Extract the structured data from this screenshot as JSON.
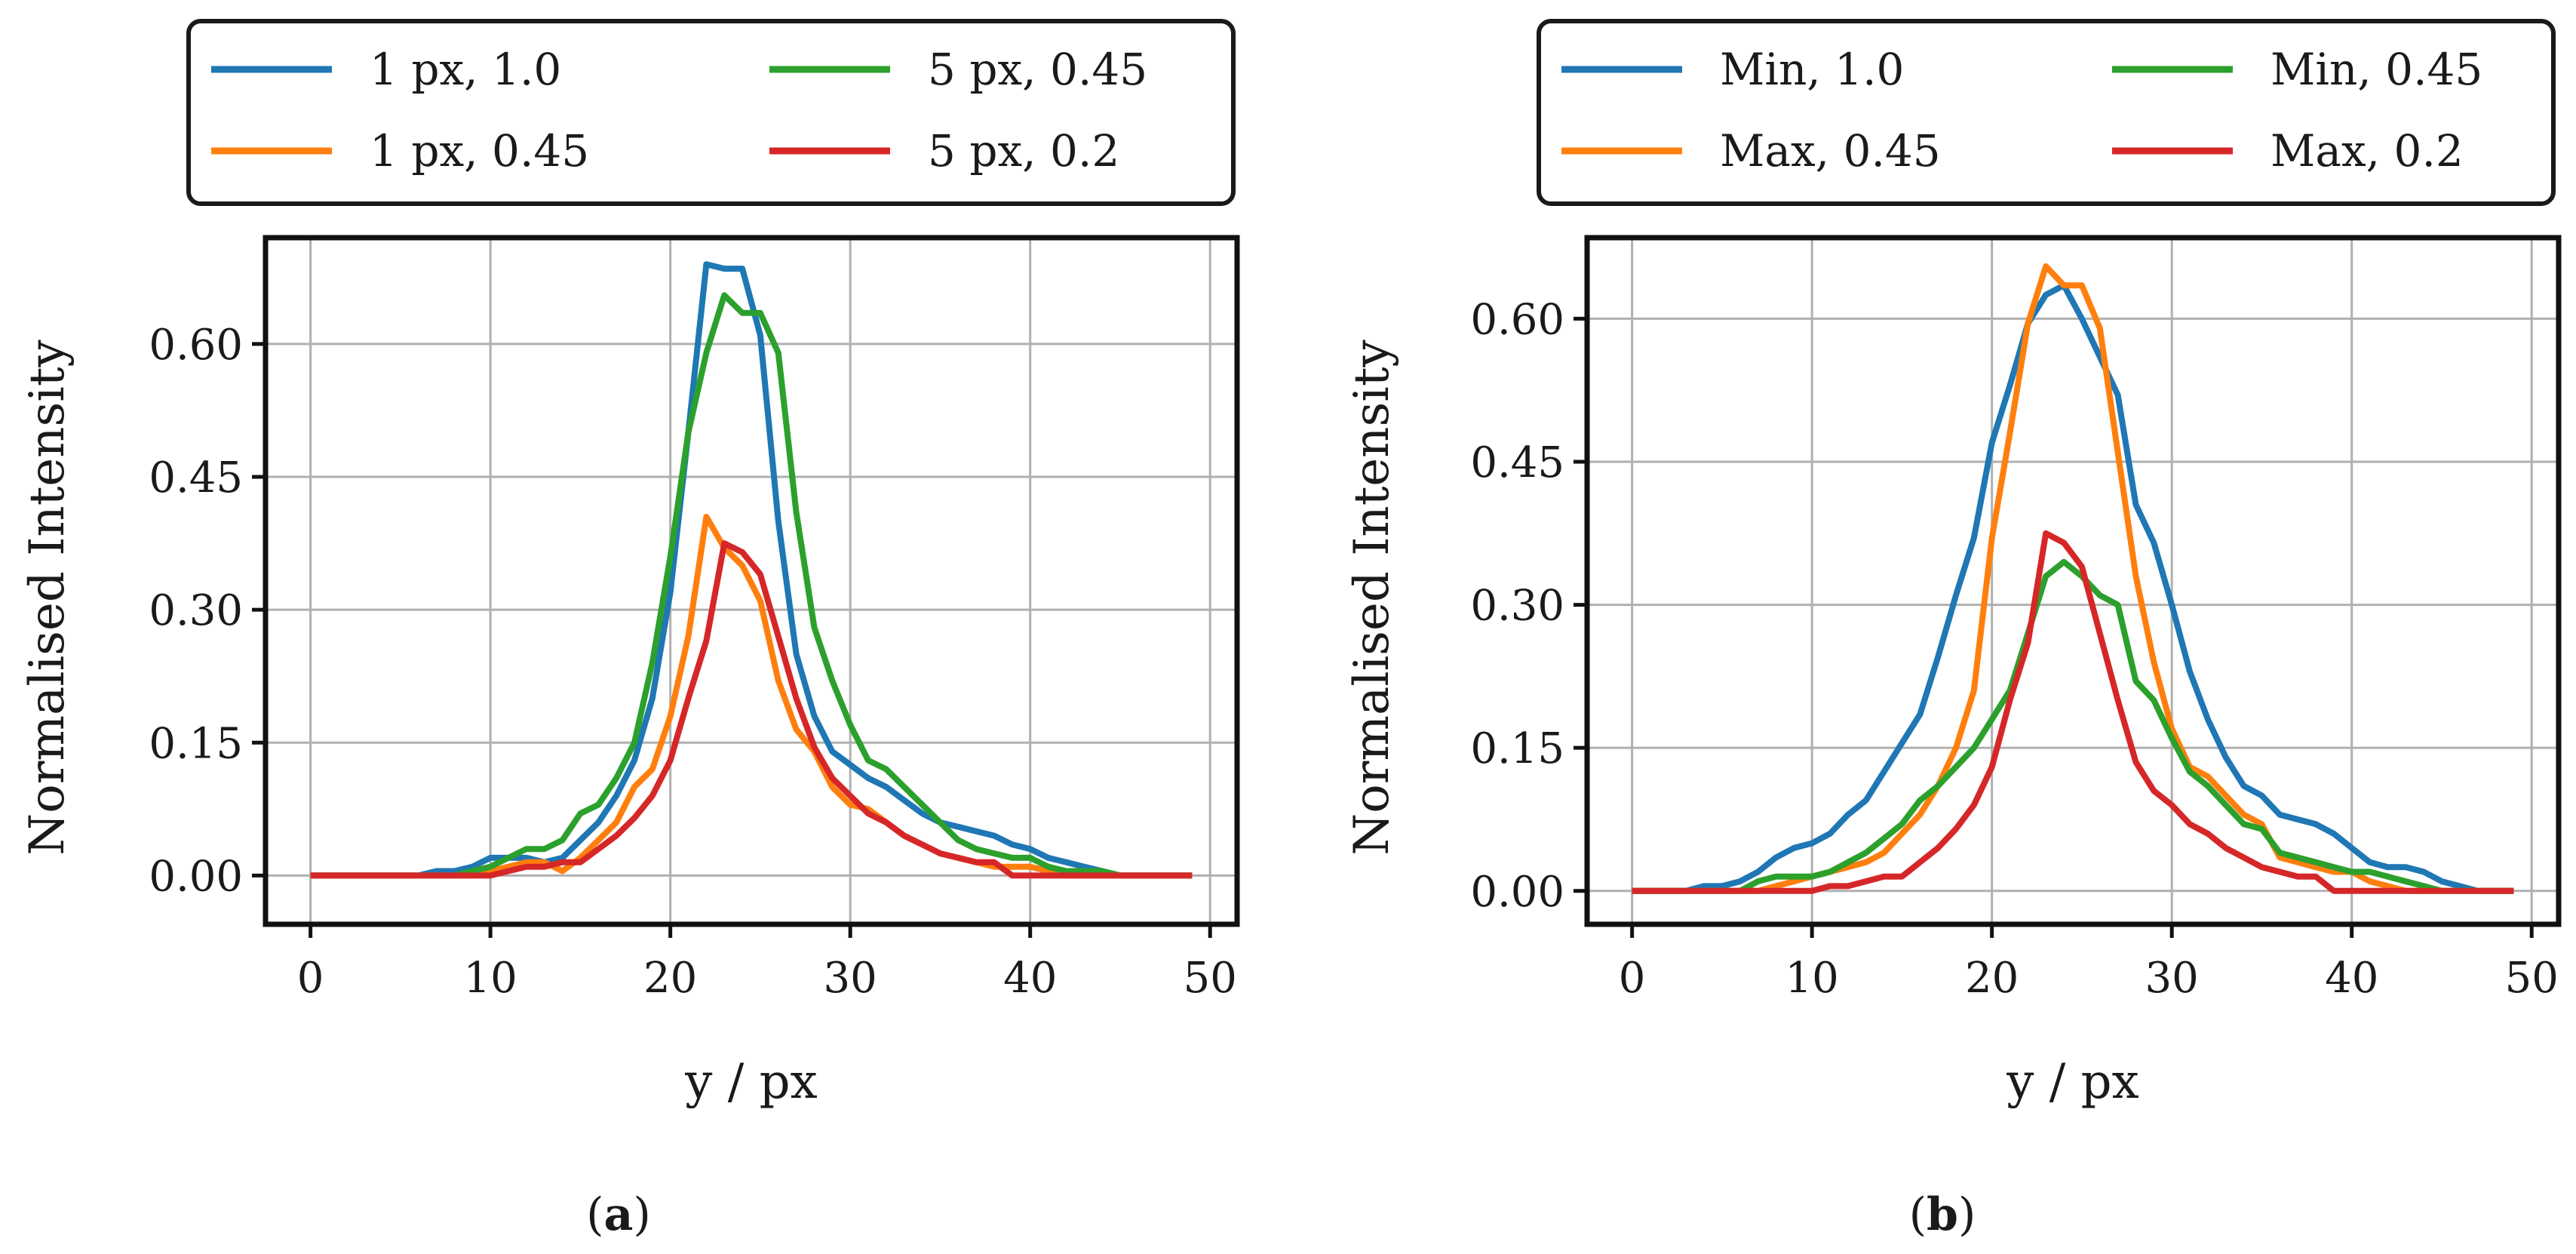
{
  "chart_data": [
    {
      "type": "line",
      "caption": "(a)",
      "caption_letter": "a",
      "xlabel": "y / px",
      "ylabel": "Normalised Intensity",
      "xlim": [
        -2.5,
        51.5
      ],
      "ylim": [
        -0.055,
        0.72
      ],
      "xticks": [
        0,
        10,
        20,
        30,
        40,
        50
      ],
      "xtick_labels": [
        "0",
        "10",
        "20",
        "30",
        "40",
        "50"
      ],
      "yticks": [
        0.0,
        0.15,
        0.3,
        0.45,
        0.6
      ],
      "ytick_labels": [
        "0.00",
        "0.15",
        "0.30",
        "0.45",
        "0.60"
      ],
      "grid": true,
      "legend_placement": "top, above plot, 2 columns",
      "x": [
        0,
        1,
        2,
        3,
        4,
        5,
        6,
        7,
        8,
        9,
        10,
        11,
        12,
        13,
        14,
        15,
        16,
        17,
        18,
        19,
        20,
        21,
        22,
        23,
        24,
        25,
        26,
        27,
        28,
        29,
        30,
        31,
        32,
        33,
        34,
        35,
        36,
        37,
        38,
        39,
        40,
        41,
        42,
        43,
        44,
        45,
        46,
        47,
        48,
        49
      ],
      "series": [
        {
          "name": "1 px, 1.0",
          "color": "#1f77b4",
          "values": [
            0,
            0,
            0,
            0,
            0,
            0,
            0,
            0.005,
            0.005,
            0.01,
            0.02,
            0.02,
            0.02,
            0.015,
            0.02,
            0.04,
            0.06,
            0.09,
            0.13,
            0.2,
            0.32,
            0.5,
            0.69,
            0.685,
            0.685,
            0.61,
            0.4,
            0.25,
            0.18,
            0.14,
            0.125,
            0.11,
            0.1,
            0.085,
            0.07,
            0.06,
            0.055,
            0.05,
            0.045,
            0.035,
            0.03,
            0.02,
            0.015,
            0.01,
            0.005,
            0,
            0,
            0,
            0,
            0
          ]
        },
        {
          "name": "1 px, 0.45",
          "color": "#ff7f0e",
          "values": [
            0,
            0,
            0,
            0,
            0,
            0,
            0,
            0,
            0,
            0,
            0.005,
            0.01,
            0.015,
            0.015,
            0.005,
            0.02,
            0.04,
            0.06,
            0.1,
            0.12,
            0.18,
            0.27,
            0.405,
            0.37,
            0.35,
            0.31,
            0.22,
            0.165,
            0.14,
            0.1,
            0.08,
            0.075,
            0.06,
            0.045,
            0.035,
            0.025,
            0.02,
            0.015,
            0.01,
            0.01,
            0.01,
            0.005,
            0,
            0,
            0,
            0,
            0,
            0,
            0,
            0
          ]
        },
        {
          "name": "5 px, 0.45",
          "color": "#2ca02c",
          "values": [
            0,
            0,
            0,
            0,
            0,
            0,
            0,
            0,
            0,
            0.005,
            0.01,
            0.02,
            0.03,
            0.03,
            0.04,
            0.07,
            0.08,
            0.11,
            0.15,
            0.24,
            0.36,
            0.5,
            0.59,
            0.655,
            0.635,
            0.635,
            0.59,
            0.41,
            0.28,
            0.22,
            0.17,
            0.13,
            0.12,
            0.1,
            0.08,
            0.06,
            0.04,
            0.03,
            0.025,
            0.02,
            0.02,
            0.01,
            0.005,
            0.005,
            0.005,
            0,
            0,
            0,
            0,
            0
          ]
        },
        {
          "name": "5 px, 0.2",
          "color": "#d62728",
          "values": [
            0,
            0,
            0,
            0,
            0,
            0,
            0,
            0,
            0,
            0,
            0,
            0.005,
            0.01,
            0.01,
            0.015,
            0.015,
            0.03,
            0.045,
            0.065,
            0.09,
            0.13,
            0.2,
            0.265,
            0.375,
            0.365,
            0.34,
            0.27,
            0.2,
            0.145,
            0.11,
            0.09,
            0.07,
            0.06,
            0.045,
            0.035,
            0.025,
            0.02,
            0.015,
            0.015,
            0,
            0,
            0,
            0,
            0,
            0,
            0,
            0,
            0,
            0,
            0
          ]
        }
      ]
    },
    {
      "type": "line",
      "caption": "(b)",
      "caption_letter": "b",
      "xlabel": "y / px",
      "ylabel": "Normalised Intensity",
      "xlim": [
        -2.5,
        51.5
      ],
      "ylim": [
        -0.035,
        0.685
      ],
      "xticks": [
        0,
        10,
        20,
        30,
        40,
        50
      ],
      "xtick_labels": [
        "0",
        "10",
        "20",
        "30",
        "40",
        "50"
      ],
      "yticks": [
        0.0,
        0.15,
        0.3,
        0.45,
        0.6
      ],
      "ytick_labels": [
        "0.00",
        "0.15",
        "0.30",
        "0.45",
        "0.60"
      ],
      "grid": true,
      "legend_placement": "top, above plot, 2 columns",
      "x": [
        0,
        1,
        2,
        3,
        4,
        5,
        6,
        7,
        8,
        9,
        10,
        11,
        12,
        13,
        14,
        15,
        16,
        17,
        18,
        19,
        20,
        21,
        22,
        23,
        24,
        25,
        26,
        27,
        28,
        29,
        30,
        31,
        32,
        33,
        34,
        35,
        36,
        37,
        38,
        39,
        40,
        41,
        42,
        43,
        44,
        45,
        46,
        47,
        48,
        49
      ],
      "series": [
        {
          "name": "Min, 1.0",
          "color": "#1f77b4",
          "values": [
            0,
            0,
            0,
            0,
            0.005,
            0.005,
            0.01,
            0.02,
            0.035,
            0.045,
            0.05,
            0.06,
            0.08,
            0.095,
            0.125,
            0.155,
            0.185,
            0.245,
            0.31,
            0.37,
            0.47,
            0.53,
            0.595,
            0.625,
            0.635,
            0.6,
            0.56,
            0.52,
            0.405,
            0.365,
            0.3,
            0.23,
            0.18,
            0.14,
            0.11,
            0.1,
            0.08,
            0.075,
            0.07,
            0.06,
            0.045,
            0.03,
            0.025,
            0.025,
            0.02,
            0.01,
            0.005,
            0,
            0,
            0
          ]
        },
        {
          "name": "Max, 0.45",
          "color": "#ff7f0e",
          "values": [
            0,
            0,
            0,
            0,
            0,
            0,
            0,
            0,
            0.005,
            0.01,
            0.015,
            0.02,
            0.025,
            0.03,
            0.04,
            0.06,
            0.08,
            0.11,
            0.15,
            0.21,
            0.37,
            0.48,
            0.595,
            0.655,
            0.635,
            0.635,
            0.59,
            0.46,
            0.33,
            0.24,
            0.17,
            0.13,
            0.12,
            0.1,
            0.08,
            0.07,
            0.035,
            0.03,
            0.025,
            0.02,
            0.02,
            0.01,
            0.005,
            0,
            0,
            0,
            0,
            0,
            0,
            0
          ]
        },
        {
          "name": "Min, 0.45",
          "color": "#2ca02c",
          "values": [
            0,
            0,
            0,
            0,
            0,
            0,
            0,
            0.01,
            0.015,
            0.015,
            0.015,
            0.02,
            0.03,
            0.04,
            0.055,
            0.07,
            0.095,
            0.11,
            0.13,
            0.15,
            0.18,
            0.21,
            0.27,
            0.33,
            0.345,
            0.33,
            0.31,
            0.3,
            0.22,
            0.2,
            0.16,
            0.125,
            0.11,
            0.09,
            0.07,
            0.065,
            0.04,
            0.035,
            0.03,
            0.025,
            0.02,
            0.02,
            0.015,
            0.01,
            0.005,
            0,
            0,
            0,
            0,
            0
          ]
        },
        {
          "name": "Max, 0.2",
          "color": "#d62728",
          "values": [
            0,
            0,
            0,
            0,
            0,
            0,
            0,
            0,
            0,
            0,
            0,
            0.005,
            0.005,
            0.01,
            0.015,
            0.015,
            0.03,
            0.045,
            0.065,
            0.09,
            0.13,
            0.2,
            0.26,
            0.375,
            0.365,
            0.34,
            0.27,
            0.2,
            0.135,
            0.105,
            0.09,
            0.07,
            0.06,
            0.045,
            0.035,
            0.025,
            0.02,
            0.015,
            0.015,
            0,
            0,
            0,
            0,
            0,
            0,
            0,
            0,
            0,
            0,
            0
          ]
        }
      ]
    }
  ]
}
